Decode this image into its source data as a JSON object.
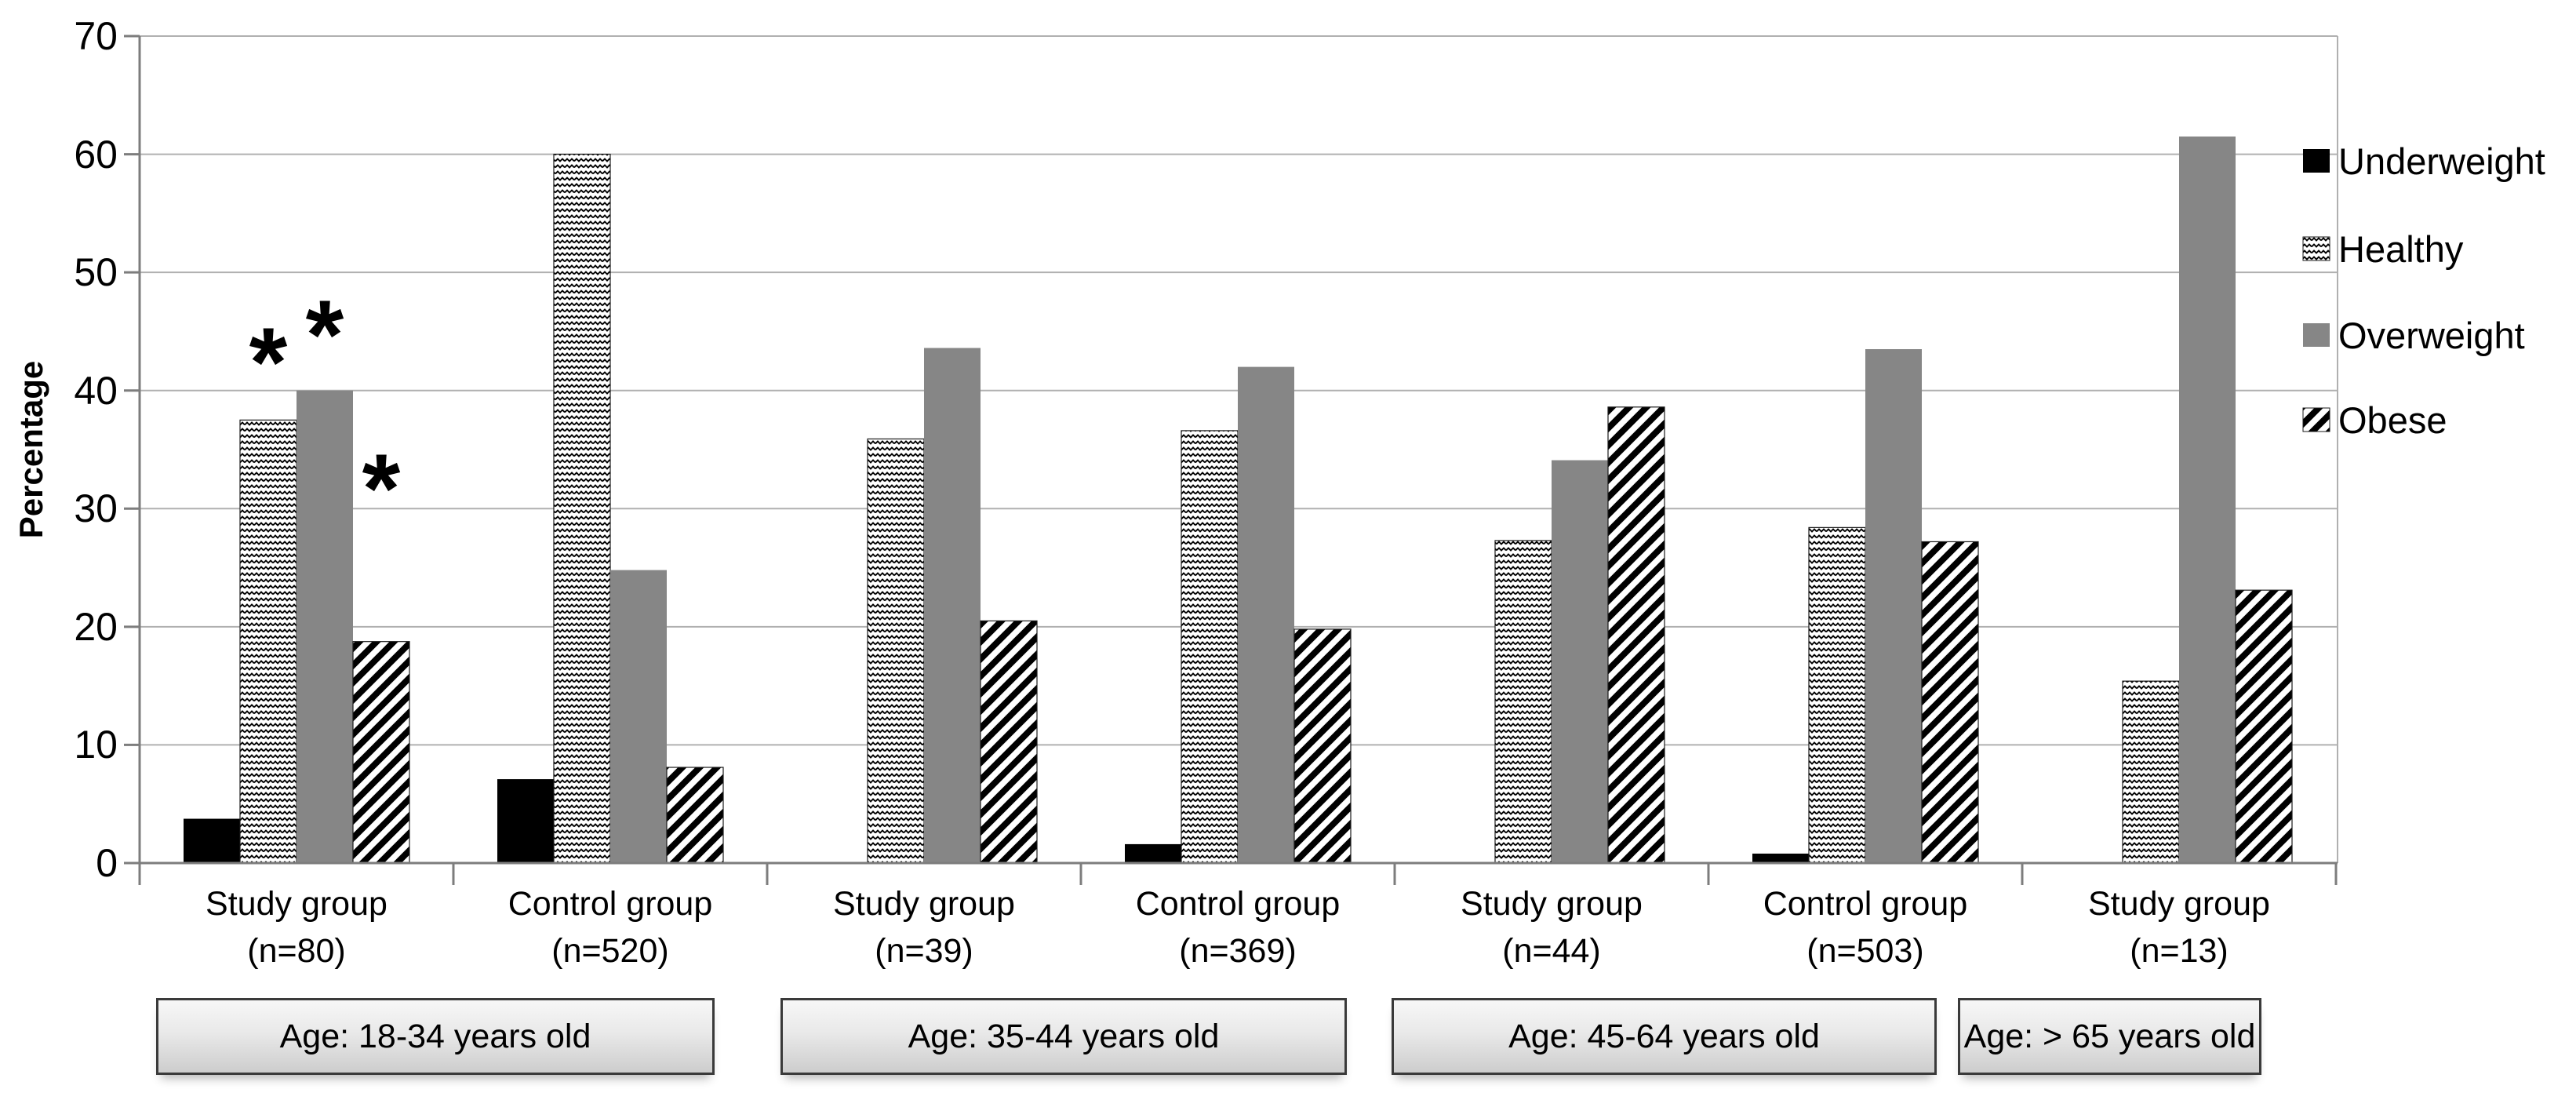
{
  "chart_data": {
    "type": "bar",
    "title": "",
    "ylabel": "Percentage",
    "ylim": [
      0,
      70
    ],
    "yticks": [
      0,
      10,
      20,
      30,
      40,
      50,
      60,
      70
    ],
    "grid": "horizontal",
    "legend_position": "right",
    "annotation_symbol": "*",
    "series": [
      {
        "name": "Underweight",
        "style": "solid-black"
      },
      {
        "name": "Healthy",
        "style": "wave-pattern"
      },
      {
        "name": "Overweight",
        "style": "solid-gray"
      },
      {
        "name": "Obese",
        "style": "diagonal-hatch"
      }
    ],
    "groups": [
      {
        "label": "Study group",
        "n_label": "(n=80)",
        "values": [
          3.75,
          37.5,
          40.0,
          18.75
        ]
      },
      {
        "label": "Control group",
        "n_label": "(n=520)",
        "values": [
          7.1,
          60.0,
          24.8,
          8.1
        ]
      },
      {
        "label": "Study group",
        "n_label": "(n=39)",
        "values": [
          0,
          35.9,
          43.6,
          20.5
        ]
      },
      {
        "label": "Control group",
        "n_label": "(n=369)",
        "values": [
          1.6,
          36.6,
          42.0,
          19.8
        ]
      },
      {
        "label": "Study group",
        "n_label": "(n=44)",
        "values": [
          0,
          27.3,
          34.1,
          38.6
        ]
      },
      {
        "label": "Control group",
        "n_label": "(n=503)",
        "values": [
          0.8,
          28.4,
          43.5,
          27.2
        ]
      },
      {
        "label": "Study group",
        "n_label": "(n=13)",
        "values": [
          0,
          15.4,
          61.5,
          23.1
        ]
      }
    ],
    "annotations": [
      {
        "group": 0,
        "series": 1,
        "at_value": 43.5
      },
      {
        "group": 0,
        "series": 2,
        "at_value": 45.8
      },
      {
        "group": 0,
        "series": 3,
        "at_value": 32.8
      }
    ],
    "age_bands": [
      {
        "label": "Age: 18-34 years old",
        "groups": [
          0,
          1
        ]
      },
      {
        "label": "Age: 35-44 years old",
        "groups": [
          2,
          3
        ]
      },
      {
        "label": "Age: 45-64 years old",
        "groups": [
          4,
          5
        ]
      },
      {
        "label": "Age: > 65 years old",
        "groups": [
          6
        ]
      }
    ]
  },
  "colors": {
    "underweight": "#000000",
    "overweight": "#868686",
    "pattern_ink": "#000000",
    "grid": "#b0b0b0",
    "axis": "#7d7d7d",
    "box_border": "#3a3a3a",
    "text": "#000000"
  }
}
